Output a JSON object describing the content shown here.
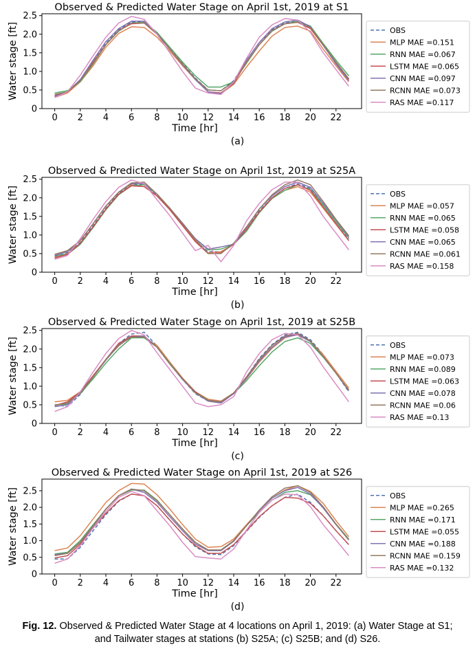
{
  "colors": {
    "OBS": "#4c72b0",
    "MLP": "#dd8452",
    "RNN": "#55a868",
    "LSTM": "#c44e52",
    "CNN": "#8172b3",
    "RCNN": "#937860",
    "RAS": "#da8bc3",
    "axis": "#000000"
  },
  "chart_data": [
    {
      "type": "line",
      "panel_label": "(a)",
      "title": "Observed & Predicted Water Stage on April 1st, 2019 at S1",
      "xlabel": "Time [hr]",
      "ylabel": "Water stage [ft]",
      "xlim": [
        -1,
        24
      ],
      "ylim": [
        0,
        2.55
      ],
      "x_ticks": [
        0,
        2,
        4,
        6,
        8,
        10,
        12,
        14,
        16,
        18,
        20,
        22
      ],
      "y_ticks": [
        0,
        0.5,
        1.0,
        1.5,
        2.0,
        2.5
      ],
      "y_tick_labels": [
        "0",
        "0.5",
        "1.0",
        "1.5",
        "2.0",
        "2.5"
      ],
      "legend_position": "right",
      "grid": false,
      "x": [
        0,
        1,
        2,
        3,
        4,
        5,
        6,
        7,
        8,
        9,
        10,
        11,
        12,
        13,
        14,
        15,
        16,
        17,
        18,
        19,
        20,
        21,
        22,
        23
      ],
      "series": [
        {
          "name": "OBS",
          "key": "OBS",
          "dashed": true,
          "values": [
            0.32,
            0.45,
            0.78,
            1.25,
            1.75,
            2.12,
            2.33,
            2.33,
            2.02,
            1.62,
            1.22,
            0.82,
            0.5,
            0.48,
            0.75,
            1.3,
            1.78,
            2.12,
            2.3,
            2.35,
            2.2,
            1.72,
            1.25,
            0.8
          ]
        },
        {
          "name": "MLP MAE =0.151",
          "key": "MLP",
          "values": [
            0.3,
            0.42,
            0.72,
            1.15,
            1.65,
            2.02,
            2.2,
            2.18,
            1.92,
            1.55,
            1.15,
            0.78,
            0.45,
            0.4,
            0.65,
            1.12,
            1.55,
            1.95,
            2.18,
            2.22,
            2.08,
            1.6,
            1.15,
            0.72
          ]
        },
        {
          "name": "RNN MAE =0.067",
          "key": "RNN",
          "values": [
            0.42,
            0.48,
            0.72,
            1.2,
            1.72,
            2.08,
            2.3,
            2.32,
            2.05,
            1.65,
            1.25,
            0.88,
            0.58,
            0.58,
            0.72,
            1.22,
            1.72,
            2.08,
            2.28,
            2.35,
            2.22,
            1.75,
            1.3,
            0.88
          ]
        },
        {
          "name": "LSTM MAE =0.065",
          "key": "LSTM",
          "values": [
            0.35,
            0.45,
            0.75,
            1.25,
            1.72,
            2.1,
            2.28,
            2.3,
            2.0,
            1.6,
            1.2,
            0.8,
            0.45,
            0.42,
            0.68,
            1.25,
            1.72,
            2.1,
            2.28,
            2.32,
            2.15,
            1.7,
            1.22,
            0.78
          ]
        },
        {
          "name": "CNN MAE =0.097",
          "key": "CNN",
          "values": [
            0.33,
            0.45,
            0.78,
            1.3,
            1.8,
            2.15,
            2.35,
            2.35,
            2.0,
            1.6,
            1.18,
            0.78,
            0.45,
            0.4,
            0.7,
            1.3,
            1.78,
            2.15,
            2.33,
            2.38,
            2.2,
            1.7,
            1.2,
            0.75
          ]
        },
        {
          "name": "RCNN MAE =0.073",
          "key": "RCNN",
          "values": [
            0.38,
            0.45,
            0.75,
            1.22,
            1.72,
            2.1,
            2.3,
            2.3,
            2.02,
            1.6,
            1.2,
            0.8,
            0.5,
            0.48,
            0.72,
            1.25,
            1.72,
            2.1,
            2.28,
            2.32,
            2.18,
            1.72,
            1.25,
            0.8
          ]
        },
        {
          "name": "RAS MAE =0.117",
          "key": "RAS",
          "values": [
            0.3,
            0.45,
            0.9,
            1.42,
            1.92,
            2.3,
            2.48,
            2.4,
            2.0,
            1.5,
            1.0,
            0.55,
            0.42,
            0.38,
            0.72,
            1.35,
            1.92,
            2.25,
            2.42,
            2.38,
            2.05,
            1.5,
            1.05,
            0.6
          ]
        }
      ]
    },
    {
      "type": "line",
      "panel_label": "(b)",
      "title": "Observed & Predicted Water Stage on April 1st, 2019 at S25A",
      "xlabel": "Time [hr]",
      "ylabel": "Water stage [ft]",
      "xlim": [
        -1,
        24
      ],
      "ylim": [
        0,
        2.55
      ],
      "x_ticks": [
        0,
        2,
        4,
        6,
        8,
        10,
        12,
        14,
        16,
        18,
        20,
        22
      ],
      "y_ticks": [
        0,
        0.5,
        1.0,
        1.5,
        2.0,
        2.5
      ],
      "y_tick_labels": [
        "0",
        "0.5",
        "1.0",
        "1.5",
        "2.0",
        "2.5"
      ],
      "legend_position": "right",
      "grid": false,
      "x": [
        0,
        1,
        2,
        3,
        4,
        5,
        6,
        7,
        8,
        9,
        10,
        11,
        12,
        13,
        14,
        15,
        16,
        17,
        18,
        19,
        20,
        21,
        22,
        23
      ],
      "series": [
        {
          "name": "OBS",
          "key": "OBS",
          "dashed": true,
          "values": [
            0.42,
            0.52,
            0.8,
            1.25,
            1.72,
            2.12,
            2.35,
            2.35,
            2.08,
            1.72,
            1.3,
            0.85,
            0.55,
            0.55,
            0.75,
            1.15,
            1.65,
            2.0,
            2.25,
            2.38,
            2.25,
            1.8,
            1.35,
            0.9
          ]
        },
        {
          "name": "MLP MAE =0.057",
          "key": "MLP",
          "values": [
            0.4,
            0.5,
            0.78,
            1.2,
            1.68,
            2.08,
            2.35,
            2.3,
            2.05,
            1.7,
            1.28,
            0.85,
            0.52,
            0.55,
            0.75,
            1.15,
            1.62,
            1.98,
            2.2,
            2.3,
            2.15,
            1.72,
            1.28,
            0.85
          ]
        },
        {
          "name": "RNN MAE =0.065",
          "key": "RNN",
          "values": [
            0.45,
            0.48,
            0.75,
            1.2,
            1.68,
            2.08,
            2.32,
            2.35,
            2.1,
            1.72,
            1.3,
            0.9,
            0.6,
            0.62,
            0.75,
            1.1,
            1.6,
            1.98,
            2.2,
            2.35,
            2.22,
            1.8,
            1.35,
            0.92
          ]
        },
        {
          "name": "LSTM MAE =0.058",
          "key": "LSTM",
          "values": [
            0.38,
            0.48,
            0.78,
            1.22,
            1.7,
            2.1,
            2.32,
            2.3,
            2.05,
            1.68,
            1.25,
            0.82,
            0.5,
            0.52,
            0.75,
            1.15,
            1.62,
            2.0,
            2.25,
            2.35,
            2.2,
            1.75,
            1.3,
            0.85
          ]
        },
        {
          "name": "CNN MAE =0.065",
          "key": "CNN",
          "values": [
            0.45,
            0.55,
            0.85,
            1.3,
            1.78,
            2.15,
            2.38,
            2.38,
            2.1,
            1.72,
            1.32,
            0.9,
            0.62,
            0.68,
            0.75,
            1.2,
            1.7,
            2.05,
            2.3,
            2.42,
            2.28,
            1.85,
            1.4,
            0.95
          ]
        },
        {
          "name": "RCNN MAE =0.061",
          "key": "RCNN",
          "values": [
            0.48,
            0.58,
            0.85,
            1.3,
            1.78,
            2.15,
            2.4,
            2.42,
            2.1,
            1.72,
            1.3,
            0.88,
            0.5,
            0.5,
            0.78,
            1.22,
            1.7,
            2.08,
            2.35,
            2.48,
            2.35,
            1.9,
            1.42,
            0.98
          ]
        },
        {
          "name": "RAS MAE =0.158",
          "key": "RAS",
          "values": [
            0.35,
            0.45,
            0.9,
            1.42,
            1.9,
            2.28,
            2.48,
            2.38,
            1.95,
            1.52,
            1.05,
            0.58,
            0.72,
            0.28,
            0.72,
            1.38,
            1.85,
            2.22,
            2.42,
            2.42,
            2.05,
            1.5,
            1.05,
            0.6
          ]
        }
      ]
    },
    {
      "type": "line",
      "panel_label": "(c)",
      "title": "Observed & Predicted Water Stage on April 1st, 2019 at S25B",
      "xlabel": "Time [hr]",
      "ylabel": "Water stage [ft]",
      "xlim": [
        -1,
        24
      ],
      "ylim": [
        0,
        2.55
      ],
      "x_ticks": [
        0,
        2,
        4,
        6,
        8,
        10,
        12,
        14,
        16,
        18,
        20,
        22
      ],
      "y_ticks": [
        0,
        0.5,
        1.0,
        1.5,
        2.0,
        2.5
      ],
      "y_tick_labels": [
        "0",
        "0.5",
        "1.0",
        "1.5",
        "2.0",
        "2.5"
      ],
      "legend_position": "right",
      "grid": false,
      "x": [
        0,
        1,
        2,
        3,
        4,
        5,
        6,
        7,
        8,
        9,
        10,
        11,
        12,
        13,
        14,
        15,
        16,
        17,
        18,
        19,
        20,
        21,
        22,
        23
      ],
      "series": [
        {
          "name": "OBS",
          "key": "OBS",
          "dashed": true,
          "values": [
            0.5,
            0.45,
            0.78,
            1.25,
            1.72,
            2.15,
            2.4,
            2.45,
            2.08,
            1.6,
            1.18,
            0.8,
            0.6,
            0.55,
            0.8,
            1.25,
            1.75,
            2.12,
            2.38,
            2.45,
            2.25,
            1.85,
            1.35,
            0.85
          ]
        },
        {
          "name": "MLP MAE =0.073",
          "key": "MLP",
          "values": [
            0.58,
            0.62,
            0.85,
            1.28,
            1.72,
            2.08,
            2.35,
            2.3,
            2.1,
            1.65,
            1.22,
            0.85,
            0.65,
            0.6,
            0.82,
            1.2,
            1.65,
            2.02,
            2.3,
            2.4,
            2.2,
            1.85,
            1.4,
            0.95
          ]
        },
        {
          "name": "RNN MAE =0.089",
          "key": "RNN",
          "values": [
            0.5,
            0.52,
            0.8,
            1.2,
            1.62,
            2.0,
            2.3,
            2.3,
            2.05,
            1.62,
            1.2,
            0.85,
            0.62,
            0.58,
            0.8,
            1.15,
            1.55,
            1.92,
            2.2,
            2.3,
            2.15,
            1.78,
            1.35,
            0.9
          ]
        },
        {
          "name": "LSTM MAE =0.063",
          "key": "LSTM",
          "values": [
            0.48,
            0.58,
            0.85,
            1.28,
            1.72,
            2.15,
            2.35,
            2.35,
            2.05,
            1.6,
            1.2,
            0.85,
            0.6,
            0.55,
            0.8,
            1.25,
            1.72,
            2.1,
            2.35,
            2.4,
            2.2,
            1.8,
            1.35,
            0.88
          ]
        },
        {
          "name": "CNN MAE =0.078",
          "key": "CNN",
          "values": [
            0.45,
            0.5,
            0.82,
            1.25,
            1.7,
            2.1,
            2.32,
            2.35,
            2.05,
            1.6,
            1.18,
            0.82,
            0.6,
            0.55,
            0.8,
            1.22,
            1.68,
            2.05,
            2.32,
            2.38,
            2.2,
            1.8,
            1.35,
            0.88
          ]
        },
        {
          "name": "RCNN MAE =0.06",
          "key": "RCNN",
          "values": [
            0.48,
            0.55,
            0.82,
            1.25,
            1.72,
            2.12,
            2.32,
            2.32,
            2.05,
            1.6,
            1.2,
            0.82,
            0.62,
            0.58,
            0.82,
            1.25,
            1.72,
            2.1,
            2.35,
            2.42,
            2.22,
            1.8,
            1.35,
            0.9
          ]
        },
        {
          "name": "RAS MAE =0.13",
          "key": "RAS",
          "values": [
            0.32,
            0.45,
            0.85,
            1.38,
            1.88,
            2.28,
            2.5,
            2.38,
            1.9,
            1.45,
            1.0,
            0.55,
            0.45,
            0.5,
            0.72,
            1.38,
            1.88,
            2.25,
            2.42,
            2.38,
            2.05,
            1.52,
            1.05,
            0.58
          ]
        }
      ]
    },
    {
      "type": "line",
      "panel_label": "(d)",
      "title": "Observed & Predicted Water Stage on April 1st, 2019 at S26",
      "xlabel": "Time [hr]",
      "ylabel": "Water stage [ft]",
      "xlim": [
        -1,
        24
      ],
      "ylim": [
        0,
        2.85
      ],
      "x_ticks": [
        0,
        2,
        4,
        6,
        8,
        10,
        12,
        14,
        16,
        18,
        20,
        22
      ],
      "y_ticks": [
        0,
        0.5,
        1.0,
        1.5,
        2.0,
        2.5
      ],
      "y_tick_labels": [
        "0",
        "0.5",
        "1.0",
        "1.5",
        "2.0",
        "2.5"
      ],
      "legend_position": "right",
      "grid": false,
      "x": [
        0,
        1,
        2,
        3,
        4,
        5,
        6,
        7,
        8,
        9,
        10,
        11,
        12,
        13,
        14,
        15,
        16,
        17,
        18,
        19,
        20,
        21,
        22,
        23
      ],
      "series": [
        {
          "name": "OBS",
          "key": "OBS",
          "dashed": true,
          "values": [
            0.45,
            0.45,
            0.8,
            1.3,
            1.78,
            2.18,
            2.4,
            2.35,
            2.05,
            1.62,
            1.2,
            0.82,
            0.6,
            0.58,
            0.85,
            1.28,
            1.7,
            2.05,
            2.3,
            2.4,
            2.15,
            1.75,
            1.3,
            0.88
          ]
        },
        {
          "name": "MLP MAE =0.265",
          "key": "MLP",
          "values": [
            0.7,
            0.78,
            1.15,
            1.65,
            2.15,
            2.5,
            2.72,
            2.7,
            2.38,
            1.95,
            1.48,
            1.05,
            0.8,
            0.82,
            1.05,
            1.48,
            1.9,
            2.28,
            2.52,
            2.65,
            2.48,
            2.12,
            1.6,
            1.12
          ]
        },
        {
          "name": "RNN MAE =0.171",
          "key": "RNN",
          "values": [
            0.6,
            0.65,
            1.0,
            1.48,
            1.95,
            2.35,
            2.52,
            2.52,
            2.22,
            1.78,
            1.35,
            0.95,
            0.72,
            0.72,
            1.0,
            1.45,
            1.85,
            2.22,
            2.45,
            2.5,
            2.38,
            2.0,
            1.5,
            1.05
          ]
        },
        {
          "name": "LSTM MAE =0.055",
          "key": "LSTM",
          "values": [
            0.48,
            0.55,
            0.9,
            1.38,
            1.82,
            2.2,
            2.4,
            2.35,
            2.05,
            1.62,
            1.2,
            0.85,
            0.62,
            0.62,
            0.88,
            1.3,
            1.72,
            2.05,
            2.3,
            2.28,
            2.12,
            1.75,
            1.3,
            0.88
          ]
        },
        {
          "name": "CNN MAE =0.188",
          "key": "CNN",
          "values": [
            0.58,
            0.62,
            0.95,
            1.42,
            1.95,
            2.35,
            2.55,
            2.45,
            2.15,
            1.72,
            1.3,
            0.9,
            0.7,
            0.7,
            0.98,
            1.45,
            1.9,
            2.28,
            2.5,
            2.6,
            2.4,
            1.98,
            1.48,
            1.02
          ]
        },
        {
          "name": "RCNN MAE =0.159",
          "key": "RCNN",
          "values": [
            0.55,
            0.62,
            0.95,
            1.45,
            1.95,
            2.35,
            2.55,
            2.5,
            2.2,
            1.78,
            1.35,
            0.95,
            0.72,
            0.72,
            1.0,
            1.45,
            1.92,
            2.32,
            2.58,
            2.65,
            2.45,
            2.02,
            1.5,
            1.02
          ]
        },
        {
          "name": "RAS MAE =0.132",
          "key": "RAS",
          "values": [
            0.32,
            0.45,
            0.85,
            1.38,
            1.88,
            2.3,
            2.48,
            2.35,
            1.9,
            1.45,
            0.95,
            0.52,
            0.48,
            0.45,
            0.75,
            1.32,
            1.85,
            2.22,
            2.4,
            2.38,
            2.02,
            1.48,
            1.02,
            0.55
          ]
        }
      ]
    }
  ],
  "caption": {
    "label": "Fig. 12.",
    "text": " Observed & Predicted Water Stage at 4 locations on April 1, 2019: (a) Water Stage at S1; and Tailwater stages at stations (b) S25A; (c) S25B; and (d) S26."
  }
}
